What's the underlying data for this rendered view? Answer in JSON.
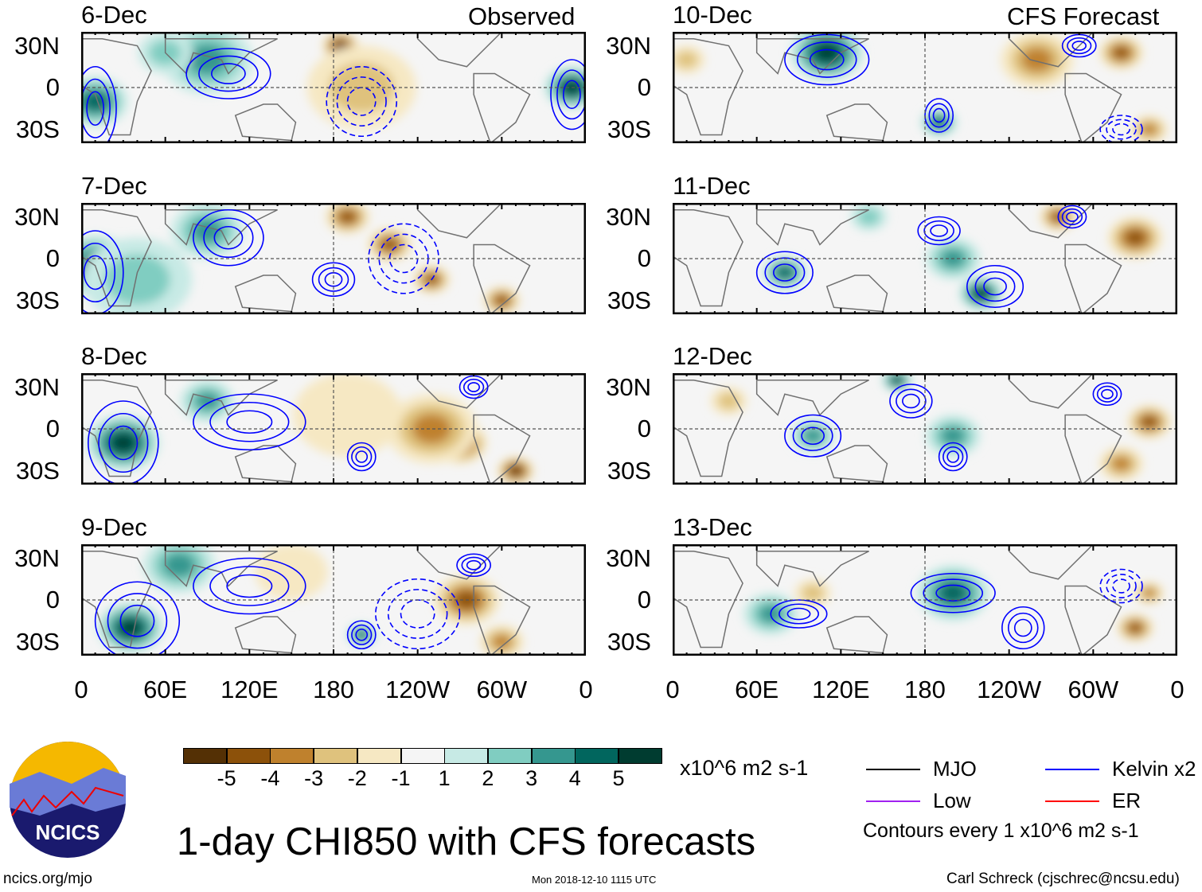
{
  "title": "1-day CHI850 with CFS forecasts",
  "left_header": "Observed",
  "right_header": "CFS Forecast",
  "lat_labels": [
    "30N",
    "0",
    "30S"
  ],
  "lon_labels": [
    "0",
    "60E",
    "120E",
    "180",
    "120W",
    "60W",
    "0"
  ],
  "units": "x10^6 m2 s-1",
  "colorbar": {
    "labels": [
      "-5",
      "-4",
      "-3",
      "-2",
      "-1",
      "1",
      "2",
      "3",
      "4",
      "5"
    ],
    "colors": [
      "#543005",
      "#8c510a",
      "#bf812d",
      "#dfc27d",
      "#f6e8c3",
      "#f5f5f5",
      "#c7eae5",
      "#80cdc1",
      "#35978f",
      "#01665e",
      "#003c30"
    ]
  },
  "legend": [
    {
      "label": "MJO",
      "color": "#000000"
    },
    {
      "label": "Kelvin x2",
      "color": "#0000ff"
    },
    {
      "label": "Low",
      "color": "#a020f0"
    },
    {
      "label": "ER",
      "color": "#ff0000"
    }
  ],
  "contour_note": "Contours every 1 x10^6 m2 s-1",
  "footer": {
    "left": "ncics.org/mjo",
    "center": "Mon 2018-12-10 1115 UTC",
    "right": "Carl Schreck (cjschrec@ncsu.edu)"
  },
  "logo_text": "NCICS",
  "panels": [
    {
      "date": "6-Dec",
      "col": 0,
      "row": 0,
      "anomalies": [
        [
          10,
          -10,
          4,
          18
        ],
        [
          90,
          20,
          3,
          25
        ],
        [
          185,
          30,
          -5,
          10
        ],
        [
          210,
          15,
          -4,
          10
        ],
        [
          200,
          0,
          -2,
          30
        ],
        [
          350,
          0,
          5,
          15
        ],
        [
          60,
          25,
          2,
          15
        ]
      ],
      "contours": [
        [
          105,
          10,
          30,
          18,
          1
        ],
        [
          10,
          -15,
          15,
          30,
          1
        ],
        [
          200,
          -10,
          25,
          25,
          -1
        ],
        [
          350,
          -5,
          15,
          25,
          1
        ]
      ]
    },
    {
      "date": "7-Dec",
      "col": 0,
      "row": 1,
      "anomalies": [
        [
          10,
          -5,
          4,
          22
        ],
        [
          90,
          20,
          3,
          20
        ],
        [
          190,
          30,
          -4,
          12
        ],
        [
          220,
          10,
          -4,
          12
        ],
        [
          250,
          -15,
          -4,
          10
        ],
        [
          40,
          -15,
          2,
          30
        ],
        [
          300,
          -30,
          -4,
          10
        ]
      ],
      "contours": [
        [
          105,
          15,
          25,
          20,
          1
        ],
        [
          10,
          -10,
          20,
          30,
          1
        ],
        [
          180,
          -15,
          15,
          12,
          1
        ],
        [
          230,
          0,
          25,
          25,
          -1
        ]
      ]
    },
    {
      "date": "8-Dec",
      "col": 0,
      "row": 2,
      "anomalies": [
        [
          30,
          -10,
          5,
          20
        ],
        [
          90,
          20,
          3,
          15
        ],
        [
          270,
          -10,
          -5,
          15
        ],
        [
          310,
          -30,
          -5,
          10
        ],
        [
          250,
          0,
          -3,
          25
        ],
        [
          190,
          10,
          -1,
          30
        ]
      ],
      "contours": [
        [
          30,
          -10,
          25,
          30,
          1
        ],
        [
          120,
          5,
          40,
          20,
          1
        ],
        [
          280,
          30,
          10,
          8,
          1
        ],
        [
          200,
          -20,
          10,
          10,
          1
        ]
      ]
    },
    {
      "date": "9-Dec",
      "col": 0,
      "row": 3,
      "anomalies": [
        [
          35,
          -20,
          5,
          18
        ],
        [
          70,
          25,
          3,
          20
        ],
        [
          200,
          -25,
          4,
          8
        ],
        [
          275,
          0,
          -4,
          18
        ],
        [
          300,
          -30,
          -3,
          12
        ],
        [
          150,
          20,
          -1,
          20
        ]
      ],
      "contours": [
        [
          40,
          -15,
          30,
          28,
          1
        ],
        [
          120,
          10,
          40,
          20,
          1
        ],
        [
          200,
          -25,
          10,
          10,
          1
        ],
        [
          280,
          25,
          12,
          8,
          1
        ],
        [
          240,
          -10,
          30,
          25,
          -1
        ]
      ]
    },
    {
      "date": "10-Dec",
      "col": 1,
      "row": 0,
      "anomalies": [
        [
          110,
          25,
          5,
          20
        ],
        [
          190,
          -25,
          4,
          10
        ],
        [
          260,
          20,
          -3,
          20
        ],
        [
          320,
          25,
          -4,
          12
        ],
        [
          10,
          20,
          -2,
          10
        ],
        [
          340,
          -30,
          -3,
          10
        ]
      ],
      "contours": [
        [
          110,
          20,
          30,
          18,
          1
        ],
        [
          190,
          -20,
          10,
          12,
          1
        ],
        [
          290,
          30,
          12,
          8,
          1
        ],
        [
          320,
          -30,
          15,
          10,
          -1
        ]
      ]
    },
    {
      "date": "11-Dec",
      "col": 1,
      "row": 1,
      "anomalies": [
        [
          80,
          -10,
          4,
          12
        ],
        [
          220,
          -25,
          5,
          12
        ],
        [
          200,
          0,
          3,
          15
        ],
        [
          275,
          30,
          -4,
          10
        ],
        [
          330,
          15,
          -4,
          15
        ],
        [
          140,
          30,
          2,
          10
        ]
      ],
      "contours": [
        [
          80,
          -10,
          20,
          15,
          1
        ],
        [
          230,
          -20,
          20,
          15,
          1
        ],
        [
          285,
          30,
          10,
          8,
          1
        ],
        [
          190,
          20,
          15,
          10,
          1
        ]
      ]
    },
    {
      "date": "12-Dec",
      "col": 1,
      "row": 2,
      "anomalies": [
        [
          160,
          35,
          5,
          8
        ],
        [
          100,
          -5,
          3,
          12
        ],
        [
          200,
          -5,
          3,
          15
        ],
        [
          340,
          5,
          -4,
          12
        ],
        [
          320,
          -25,
          -3,
          12
        ],
        [
          40,
          20,
          -2,
          10
        ]
      ],
      "contours": [
        [
          100,
          -5,
          20,
          15,
          1
        ],
        [
          170,
          20,
          15,
          12,
          1
        ],
        [
          310,
          25,
          10,
          8,
          1
        ],
        [
          200,
          -20,
          10,
          10,
          1
        ]
      ]
    },
    {
      "date": "13-Dec",
      "col": 1,
      "row": 3,
      "anomalies": [
        [
          200,
          5,
          4,
          20
        ],
        [
          70,
          -10,
          3,
          15
        ],
        [
          330,
          -20,
          -4,
          10
        ],
        [
          340,
          5,
          -3,
          8
        ],
        [
          100,
          5,
          -2,
          10
        ]
      ],
      "contours": [
        [
          200,
          5,
          30,
          14,
          1
        ],
        [
          90,
          -10,
          20,
          10,
          1
        ],
        [
          250,
          -20,
          15,
          15,
          1
        ],
        [
          320,
          10,
          15,
          12,
          -1
        ]
      ]
    }
  ]
}
